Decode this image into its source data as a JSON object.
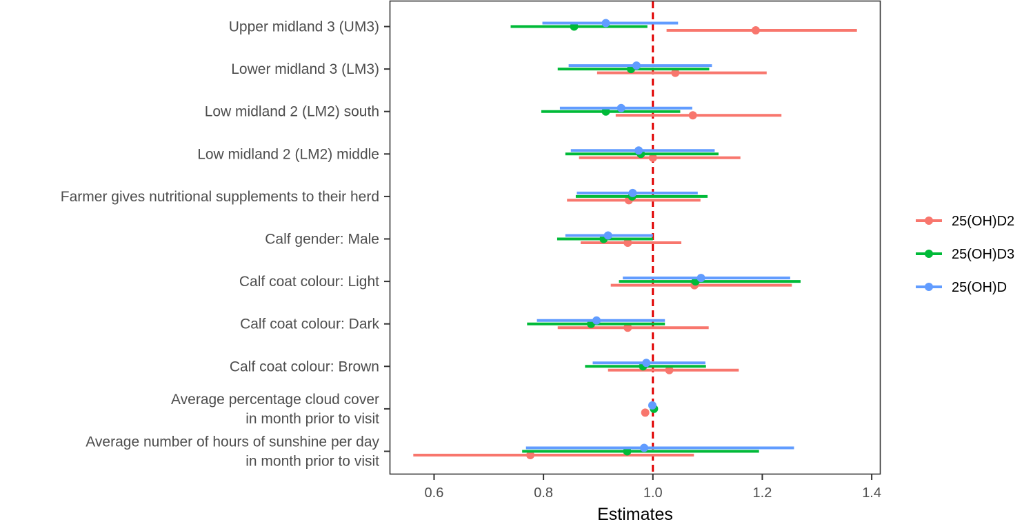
{
  "chart_data": {
    "type": "forest",
    "xlabel": "Estimates",
    "xlim": [
      0.52,
      1.415
    ],
    "xticks": [
      0.6,
      0.8,
      1.0,
      1.2,
      1.4
    ],
    "xtick_labels": [
      "0.6",
      "0.8",
      "1.0",
      "1.2",
      "1.4"
    ],
    "reference_line": {
      "x": 1.0,
      "color": "#e00000",
      "style": "dashed"
    },
    "grid": false,
    "legend_position": "right",
    "categories": [
      [
        "Upper midland 3 (UM3)"
      ],
      [
        "Lower midland 3 (LM3)"
      ],
      [
        "Low midland 2 (LM2) south"
      ],
      [
        "Low midland 2 (LM2) middle"
      ],
      [
        "Farmer gives nutritional supplements to their herd"
      ],
      [
        "Calf gender: Male"
      ],
      [
        "Calf coat colour: Light"
      ],
      [
        "Calf coat colour: Dark"
      ],
      [
        "Calf coat colour: Brown"
      ],
      [
        "Average percentage cloud cover",
        "in month prior to visit"
      ],
      [
        "Average number of hours of sunshine per day",
        "in month prior to visit"
      ]
    ],
    "series": [
      {
        "name": "25(OH)D2",
        "color": "#F8766D",
        "estimate": [
          1.188,
          1.041,
          1.073,
          1.0,
          0.956,
          0.954,
          1.076,
          0.954,
          1.03,
          0.986,
          0.776
        ],
        "lower": [
          1.025,
          0.898,
          0.932,
          0.865,
          0.843,
          0.868,
          0.923,
          0.826,
          0.918,
          0.986,
          0.562
        ],
        "upper": [
          1.373,
          1.208,
          1.235,
          1.16,
          1.087,
          1.052,
          1.254,
          1.102,
          1.157,
          0.986,
          1.075
        ]
      },
      {
        "name": "25(OH)D3",
        "color": "#00BA38",
        "estimate": [
          0.856,
          0.96,
          0.914,
          0.978,
          0.962,
          0.91,
          1.078,
          0.887,
          0.982,
          1.002,
          0.953
        ],
        "lower": [
          0.74,
          0.826,
          0.796,
          0.84,
          0.859,
          0.825,
          0.938,
          0.77,
          0.876,
          1.002,
          0.761
        ],
        "upper": [
          0.99,
          1.103,
          1.05,
          1.12,
          1.1,
          1.0,
          1.27,
          1.022,
          1.097,
          1.002,
          1.194
        ]
      },
      {
        "name": "25(OH)D",
        "color": "#619CFF",
        "estimate": [
          0.914,
          0.97,
          0.942,
          0.974,
          0.963,
          0.918,
          1.088,
          0.897,
          0.988,
          0.999,
          0.984
        ],
        "lower": [
          0.798,
          0.846,
          0.83,
          0.85,
          0.861,
          0.84,
          0.945,
          0.788,
          0.89,
          0.999,
          0.768
        ],
        "upper": [
          1.046,
          1.108,
          1.072,
          1.113,
          1.082,
          1.0,
          1.251,
          1.022,
          1.096,
          0.999,
          1.258
        ]
      }
    ]
  }
}
